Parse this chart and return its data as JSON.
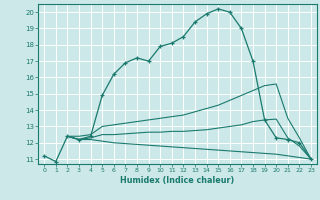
{
  "xlabel": "Humidex (Indice chaleur)",
  "xlim": [
    -0.5,
    23.5
  ],
  "ylim": [
    10.7,
    20.5
  ],
  "yticks": [
    11,
    12,
    13,
    14,
    15,
    16,
    17,
    18,
    19,
    20
  ],
  "xticks": [
    0,
    1,
    2,
    3,
    4,
    5,
    6,
    7,
    8,
    9,
    10,
    11,
    12,
    13,
    14,
    15,
    16,
    17,
    18,
    19,
    20,
    21,
    22,
    23
  ],
  "bg_color": "#cce8e8",
  "grid_color": "#ffffff",
  "line_color": "#1a7a6e",
  "curve1_x": [
    0,
    1,
    2,
    3,
    4,
    5,
    6,
    7,
    8,
    9,
    10,
    11,
    12,
    13,
    14,
    15,
    16,
    17,
    18,
    19,
    20,
    21,
    22,
    23
  ],
  "curve1_y": [
    11.2,
    10.85,
    12.4,
    12.2,
    12.4,
    14.9,
    16.2,
    16.9,
    17.2,
    17.0,
    17.9,
    18.1,
    18.5,
    19.4,
    19.9,
    20.2,
    20.0,
    19.0,
    17.0,
    13.4,
    12.3,
    12.2,
    12.0,
    11.0
  ],
  "curve2_x": [
    2,
    3,
    4,
    5,
    6,
    7,
    8,
    9,
    10,
    11,
    12,
    13,
    14,
    15,
    16,
    17,
    18,
    19,
    20,
    21,
    22,
    23
  ],
  "curve2_y": [
    12.4,
    12.4,
    12.5,
    13.0,
    13.1,
    13.2,
    13.3,
    13.4,
    13.5,
    13.6,
    13.7,
    13.9,
    14.1,
    14.3,
    14.6,
    14.9,
    15.2,
    15.5,
    15.6,
    13.5,
    12.3,
    11.0
  ],
  "curve3_x": [
    2,
    3,
    4,
    5,
    6,
    7,
    8,
    9,
    10,
    11,
    12,
    13,
    14,
    15,
    16,
    17,
    18,
    19,
    20,
    21,
    22,
    23
  ],
  "curve3_y": [
    12.4,
    12.2,
    12.3,
    12.5,
    12.5,
    12.55,
    12.6,
    12.65,
    12.65,
    12.7,
    12.7,
    12.75,
    12.8,
    12.9,
    13.0,
    13.1,
    13.3,
    13.4,
    13.45,
    12.3,
    11.8,
    11.0
  ],
  "curve4_x": [
    2,
    3,
    4,
    5,
    6,
    7,
    8,
    9,
    10,
    11,
    12,
    13,
    14,
    15,
    16,
    17,
    18,
    19,
    20,
    21,
    22,
    23
  ],
  "curve4_y": [
    12.4,
    12.2,
    12.2,
    12.1,
    12.0,
    11.95,
    11.9,
    11.85,
    11.8,
    11.75,
    11.7,
    11.65,
    11.6,
    11.55,
    11.5,
    11.45,
    11.4,
    11.35,
    11.3,
    11.2,
    11.1,
    11.0
  ]
}
